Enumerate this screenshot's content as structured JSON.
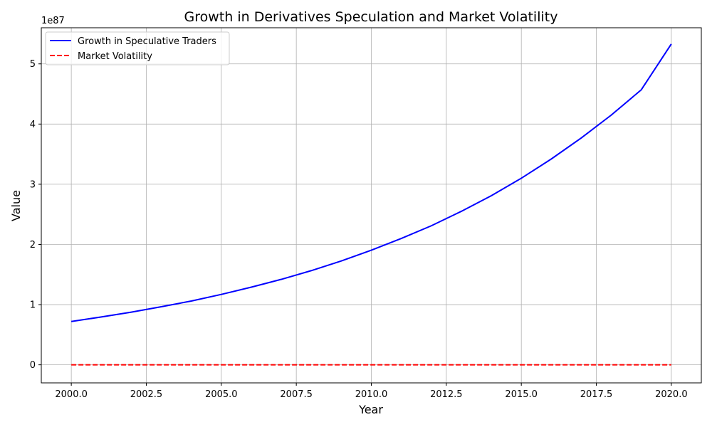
{
  "chart_data": {
    "type": "line",
    "title": "Growth in Derivatives Speculation and Market Volatility",
    "xlabel": "Year",
    "ylabel": "Value",
    "y_offset_label": "1e87",
    "xlim": [
      1999.0,
      2021.0
    ],
    "ylim": [
      -0.3,
      5.6
    ],
    "x_ticks": [
      2000.0,
      2002.5,
      2005.0,
      2007.5,
      2010.0,
      2012.5,
      2015.0,
      2017.5,
      2020.0
    ],
    "x_tick_labels": [
      "2000.0",
      "2002.5",
      "2005.0",
      "2007.5",
      "2010.0",
      "2012.5",
      "2015.0",
      "2017.5",
      "2020.0"
    ],
    "y_ticks": [
      0,
      1,
      2,
      3,
      4,
      5
    ],
    "y_tick_labels": [
      "0",
      "1",
      "2",
      "3",
      "4",
      "5"
    ],
    "grid": true,
    "legend_position": "top-left",
    "x": [
      2000,
      2001,
      2002,
      2003,
      2004,
      2005,
      2006,
      2007,
      2008,
      2009,
      2010,
      2011,
      2012,
      2013,
      2014,
      2015,
      2016,
      2017,
      2018,
      2019,
      2020
    ],
    "series": [
      {
        "name": "Growth in Speculative Traders",
        "color": "#0000ff",
        "style": "solid",
        "values": [
          0.72,
          0.795,
          0.875,
          0.965,
          1.06,
          1.17,
          1.29,
          1.42,
          1.565,
          1.725,
          1.905,
          2.1,
          2.31,
          2.55,
          2.81,
          3.1,
          3.42,
          3.77,
          4.15,
          4.57,
          5.33
        ]
      },
      {
        "name": "Market Volatility",
        "color": "#ff0000",
        "style": "dashed",
        "values": [
          0,
          0,
          0,
          0,
          0,
          0,
          0,
          0,
          0,
          0,
          0,
          0,
          0,
          0,
          0,
          0,
          0,
          0,
          0,
          0,
          0
        ]
      }
    ]
  }
}
